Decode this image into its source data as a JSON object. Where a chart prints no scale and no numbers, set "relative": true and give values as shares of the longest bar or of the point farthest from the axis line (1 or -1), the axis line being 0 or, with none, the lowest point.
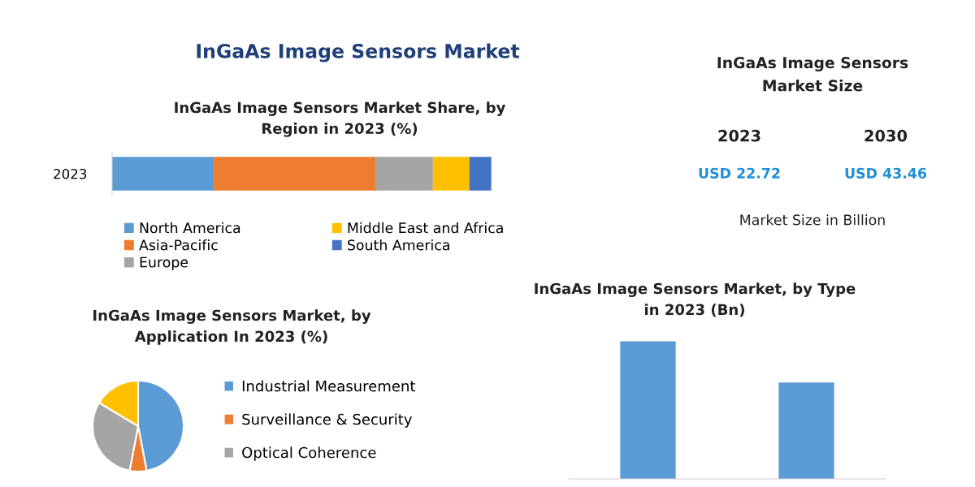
{
  "chart_data": [
    {
      "type": "other",
      "title": "InGaAs Image Sensors Market"
    },
    {
      "type": "bar",
      "orientation": "horizontal",
      "stacked": true,
      "relative": true,
      "title": "InGaAs Image Sensors Market Share, by\nRegion in 2023 (%)",
      "categories": [
        "2023"
      ],
      "legend": "bottom",
      "series": [
        {
          "name": "North America",
          "color": "#5b9bd5",
          "values": [
            0.268
          ]
        },
        {
          "name": "Asia-Pacific",
          "color": "#ed7d31",
          "values": [
            0.428
          ]
        },
        {
          "name": "Europe",
          "color": "#a5a5a5",
          "values": [
            0.15
          ]
        },
        {
          "name": "Middle East and Africa",
          "color": "#ffc000",
          "values": [
            0.096
          ]
        },
        {
          "name": "South America",
          "color": "#4472c4",
          "values": [
            0.058
          ]
        }
      ]
    },
    {
      "type": "other",
      "title": "InGaAs Image Sensors\nMarket Size",
      "annotations": [
        "2023",
        "2030",
        "USD 22.72",
        "USD 43.46",
        "Market Size in Billion"
      ]
    },
    {
      "type": "pie",
      "title": "InGaAs Image Sensors Market, by\nApplication In 2023 (%)",
      "legend": "right",
      "categories": [
        "Industrial Measurement",
        "Surveillance & Security",
        "Optical Coherence",
        null
      ],
      "values": [
        47,
        6,
        30.6,
        16.4
      ],
      "colors": [
        "#5b9bd5",
        "#ed7d31",
        "#a5a5a5",
        "#ffc000"
      ]
    },
    {
      "type": "bar",
      "relative": true,
      "title": "InGaAs Image Sensors Market, by Type\nin 2023 (Bn)",
      "categories": [
        null,
        null
      ],
      "values": [
        1,
        0.7
      ],
      "color": "#5b9bd5"
    }
  ]
}
